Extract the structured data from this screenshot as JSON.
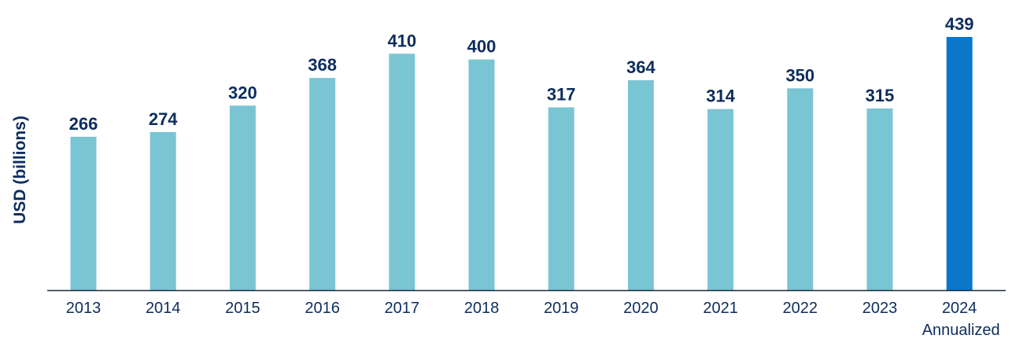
{
  "chart_data": {
    "type": "bar",
    "ylabel": "USD (billions)",
    "xlabel": "",
    "ylim": [
      0,
      460
    ],
    "grid": false,
    "categories": [
      "2013",
      "2014",
      "2015",
      "2016",
      "2017",
      "2018",
      "2019",
      "2020",
      "2021",
      "2022",
      "2023",
      "2024"
    ],
    "category_sublabels": [
      "",
      "",
      "",
      "",
      "",
      "",
      "",
      "",
      "",
      "",
      "",
      "Annualized"
    ],
    "values": [
      266,
      274,
      320,
      368,
      410,
      400,
      317,
      364,
      314,
      350,
      315,
      439
    ],
    "data_labels": [
      "266",
      "274",
      "320",
      "368",
      "410",
      "400",
      "317",
      "364",
      "314",
      "350",
      "315",
      "439"
    ],
    "colors": {
      "default_bar": "#7ac5d4",
      "highlight_bar": "#0a77c9",
      "text": "#0d2d5e",
      "axis": "#1b2a3a"
    },
    "highlight_index": 11
  }
}
